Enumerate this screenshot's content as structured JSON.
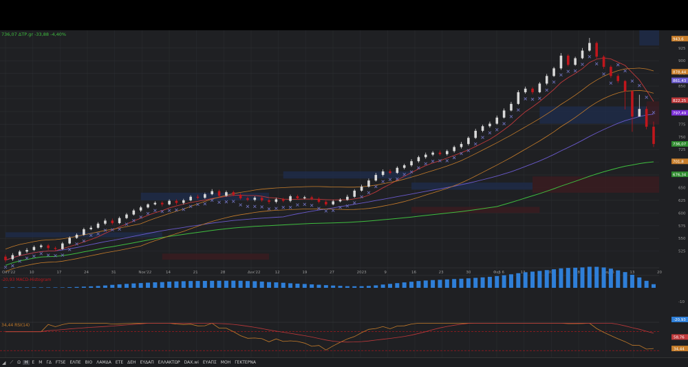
{
  "header": {
    "price_line": "736,07 ΔΤΡ.gr -33,88 -4,40%",
    "macd_label": "-20,93 MACD-Histogram",
    "rsi_label": "34,44 RSI(14)"
  },
  "colors": {
    "bg": "#1f2023",
    "grid": "#2c2e33",
    "up": "#d9d9d9",
    "down": "#c0161c",
    "ma_green": "#3fbf3f",
    "ma_orange": "#c77d2a",
    "ma_red": "#c0393b",
    "ma_purple": "#6a5acd",
    "psar": "#6d6fb8",
    "macd_pos": "#2f7fd8",
    "macd_neg": "#c0161c",
    "supply_zone": "#3a1c20",
    "demand_zone": "#1e2c48"
  },
  "chart_data": {
    "type": "candlestick",
    "instrument": "ΔΤΡ.gr",
    "last": "736,07",
    "change": "-33,88",
    "change_pct": "-4,40%",
    "ylim": [
      496,
      960
    ],
    "y_ticks": [
      "925",
      "900",
      "875",
      "850",
      "825",
      "800",
      "775",
      "750",
      "725",
      "700",
      "675",
      "650",
      "625",
      "600",
      "575",
      "550",
      "525"
    ],
    "x_labels": [
      "Οκτ'22",
      "10",
      "17",
      "24",
      "31",
      "Νοε'22",
      "14",
      "21",
      "28",
      "Δεκ'22",
      "12",
      "19",
      "27",
      "2023",
      "9",
      "16",
      "23",
      "30",
      "Φεβ 6",
      "13",
      "20",
      "28",
      "Μαρ 6",
      "13",
      "20"
    ],
    "price_tags": [
      {
        "label": "943,6",
        "value": 943.6,
        "color": "#c77d2a"
      },
      {
        "label": "878,44",
        "value": 878.4,
        "color": "#c77d2a"
      },
      {
        "label": "861,43",
        "value": 861.4,
        "color": "#6a5acd"
      },
      {
        "label": "822,25",
        "value": 822.2,
        "color": "#c0393b"
      },
      {
        "label": "797,49",
        "value": 797.5,
        "color": "#7b2fd8"
      },
      {
        "label": "736,07",
        "value": 736.1,
        "color": "#2e8b2e"
      },
      {
        "label": "701,8",
        "value": 701.8,
        "color": "#c77d2a"
      },
      {
        "label": "676,34",
        "value": 676.3,
        "color": "#2e8b2e"
      }
    ],
    "candles": [
      [
        514,
        507,
        518,
        503
      ],
      [
        509,
        517,
        521,
        506
      ],
      [
        517,
        524,
        527,
        515
      ],
      [
        524,
        527,
        531,
        521
      ],
      [
        527,
        533,
        536,
        525
      ],
      [
        533,
        536,
        539,
        530
      ],
      [
        536,
        531,
        539,
        527
      ],
      [
        531,
        529,
        534,
        526
      ],
      [
        529,
        540,
        543,
        527
      ],
      [
        540,
        551,
        554,
        538
      ],
      [
        551,
        557,
        560,
        549
      ],
      [
        557,
        568,
        571,
        555
      ],
      [
        568,
        571,
        575,
        566
      ],
      [
        571,
        579,
        582,
        569
      ],
      [
        579,
        585,
        589,
        576
      ],
      [
        585,
        580,
        589,
        577
      ],
      [
        580,
        590,
        593,
        578
      ],
      [
        590,
        597,
        600,
        588
      ],
      [
        597,
        605,
        608,
        595
      ],
      [
        605,
        611,
        614,
        602
      ],
      [
        611,
        617,
        619,
        609
      ],
      [
        617,
        620,
        623,
        615
      ],
      [
        620,
        617,
        623,
        613
      ],
      [
        617,
        624,
        627,
        615
      ],
      [
        624,
        620,
        627,
        616
      ],
      [
        620,
        625,
        628,
        617
      ],
      [
        625,
        632,
        635,
        623
      ],
      [
        632,
        630,
        636,
        627
      ],
      [
        630,
        637,
        640,
        628
      ],
      [
        637,
        643,
        647,
        635
      ],
      [
        643,
        634,
        646,
        631
      ],
      [
        634,
        641,
        644,
        632
      ],
      [
        641,
        636,
        644,
        633
      ],
      [
        636,
        629,
        639,
        626
      ],
      [
        629,
        626,
        632,
        623
      ],
      [
        626,
        630,
        633,
        623
      ],
      [
        630,
        625,
        633,
        622
      ],
      [
        625,
        622,
        628,
        618
      ],
      [
        622,
        627,
        630,
        619
      ],
      [
        627,
        624,
        630,
        621
      ],
      [
        624,
        633,
        636,
        621
      ],
      [
        633,
        629,
        636,
        626
      ],
      [
        629,
        631,
        634,
        627
      ],
      [
        631,
        628,
        634,
        625
      ],
      [
        628,
        622,
        631,
        619
      ],
      [
        622,
        617,
        625,
        614
      ],
      [
        617,
        623,
        626,
        615
      ],
      [
        623,
        626,
        629,
        621
      ],
      [
        626,
        632,
        636,
        624
      ],
      [
        632,
        644,
        647,
        630
      ],
      [
        644,
        652,
        656,
        642
      ],
      [
        652,
        664,
        668,
        650
      ],
      [
        664,
        675,
        679,
        662
      ],
      [
        675,
        682,
        686,
        672
      ],
      [
        682,
        679,
        686,
        676
      ],
      [
        679,
        689,
        692,
        677
      ],
      [
        689,
        694,
        697,
        686
      ],
      [
        694,
        702,
        706,
        691
      ],
      [
        702,
        710,
        713,
        699
      ],
      [
        710,
        715,
        719,
        707
      ],
      [
        715,
        719,
        722,
        712
      ],
      [
        719,
        716,
        723,
        713
      ],
      [
        716,
        722,
        725,
        713
      ],
      [
        722,
        730,
        733,
        719
      ],
      [
        730,
        736,
        740,
        727
      ],
      [
        736,
        748,
        751,
        733
      ],
      [
        748,
        762,
        766,
        746
      ],
      [
        762,
        771,
        774,
        759
      ],
      [
        771,
        776,
        780,
        768
      ],
      [
        776,
        788,
        792,
        774
      ],
      [
        788,
        802,
        806,
        786
      ],
      [
        802,
        815,
        819,
        800
      ],
      [
        815,
        838,
        842,
        813
      ],
      [
        838,
        845,
        849,
        835
      ],
      [
        845,
        838,
        848,
        834
      ],
      [
        838,
        855,
        858,
        836
      ],
      [
        855,
        870,
        874,
        852
      ],
      [
        870,
        885,
        888,
        868
      ],
      [
        885,
        910,
        915,
        882
      ],
      [
        910,
        892,
        913,
        889
      ],
      [
        892,
        905,
        908,
        890
      ],
      [
        905,
        920,
        925,
        903
      ],
      [
        920,
        935,
        945,
        918
      ],
      [
        935,
        908,
        938,
        904
      ],
      [
        908,
        888,
        911,
        884
      ],
      [
        888,
        870,
        891,
        866
      ],
      [
        870,
        860,
        874,
        856
      ],
      [
        860,
        840,
        862,
        804
      ],
      [
        840,
        790,
        842,
        760
      ],
      [
        790,
        805,
        833,
        795
      ],
      [
        805,
        770,
        810,
        765
      ],
      [
        770,
        736,
        780,
        730
      ]
    ],
    "indicators": {
      "macd_last": "-20,93",
      "rsi_last": "34,44",
      "rsi_ma_last": "58,76",
      "macd_ticks": [
        "-10"
      ]
    }
  },
  "toolbar": {
    "items": [
      "Ω",
      "Η",
      "Ε",
      "Μ",
      "ΓΔ",
      "FTSE",
      "ΕΛΠΕ",
      "ΒΙΟ",
      "ΛΑΜΔΑ",
      "ΕΤΕ",
      "ΔΕΗ",
      "ΕΥΔΑΠ",
      "ΕΛΛΑΚΤΩΡ",
      "DAX.wi",
      "ΕΥΑΠΣ",
      "ΜΟΗ",
      "ΓΕΚΤΕΡΝΑ"
    ],
    "active_index": 1
  }
}
